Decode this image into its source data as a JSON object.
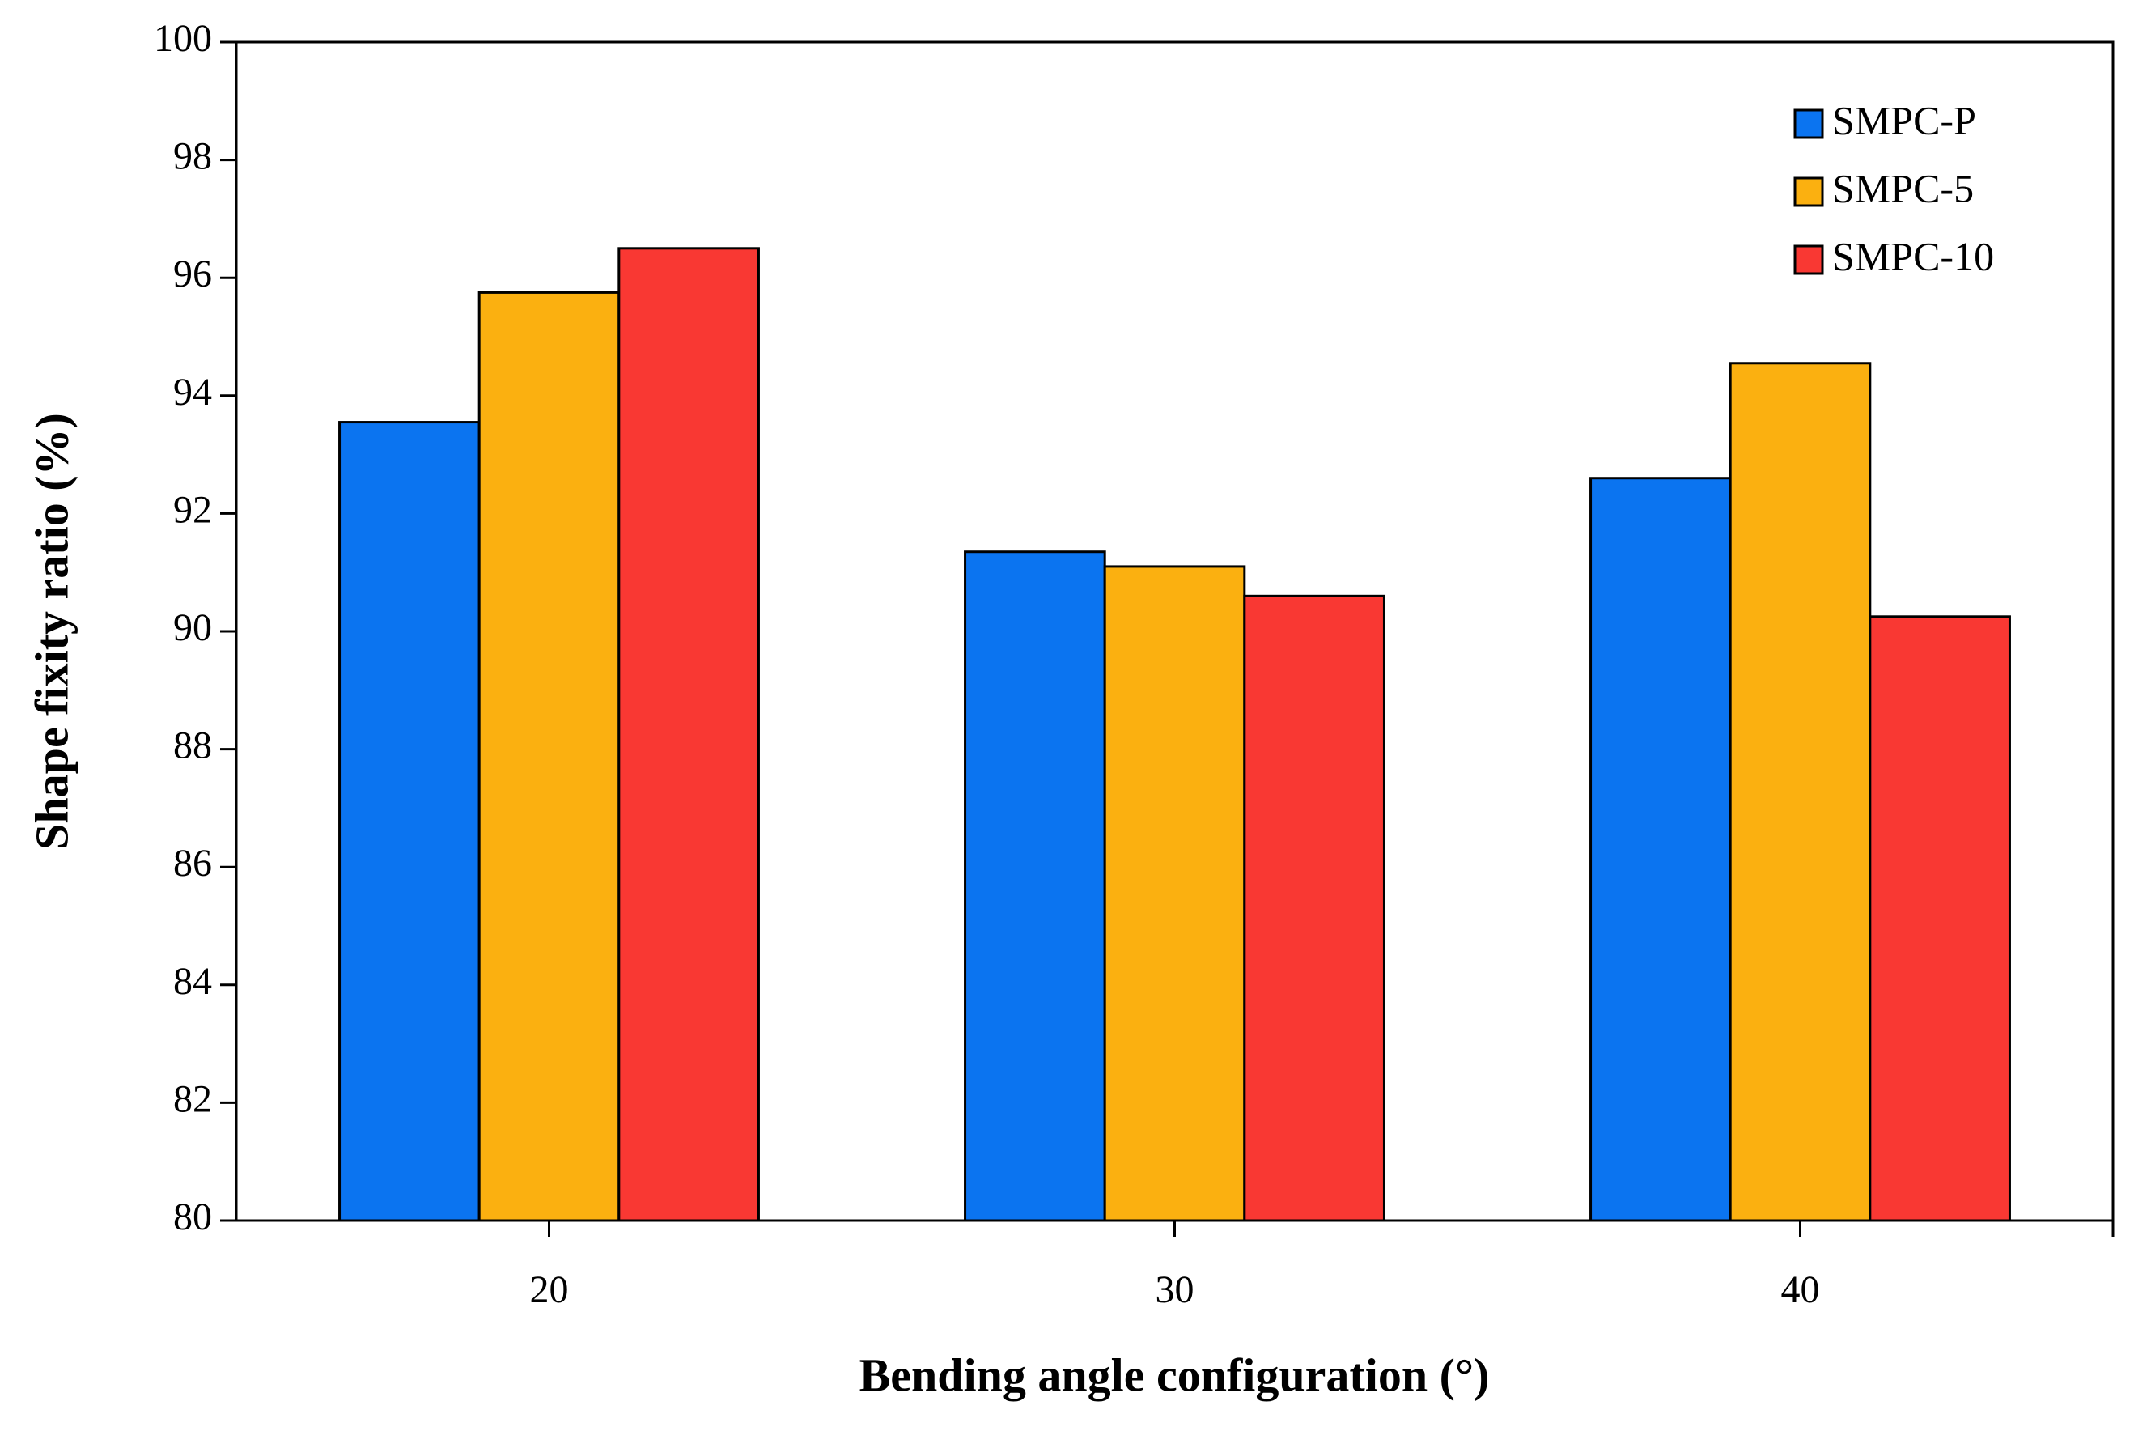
{
  "chart_data": {
    "type": "bar",
    "x_label": "Bending angle configuration (°)",
    "y_label": "Shape fixity ratio (%)",
    "categories": [
      "20",
      "30",
      "40"
    ],
    "series": [
      {
        "name": "SMPC-P",
        "color": "#0b74f0",
        "values": [
          93.55,
          91.35,
          92.6
        ]
      },
      {
        "name": "SMPC-5",
        "color": "#fbb010",
        "values": [
          95.75,
          91.1,
          94.55
        ]
      },
      {
        "name": "SMPC-10",
        "color": "#f93833",
        "values": [
          96.5,
          90.6,
          90.25
        ]
      }
    ],
    "ylim": [
      80,
      100
    ],
    "yticks": [
      80,
      82,
      84,
      86,
      88,
      90,
      92,
      94,
      96,
      98,
      100
    ],
    "grid": false,
    "legend": "upper-right"
  }
}
